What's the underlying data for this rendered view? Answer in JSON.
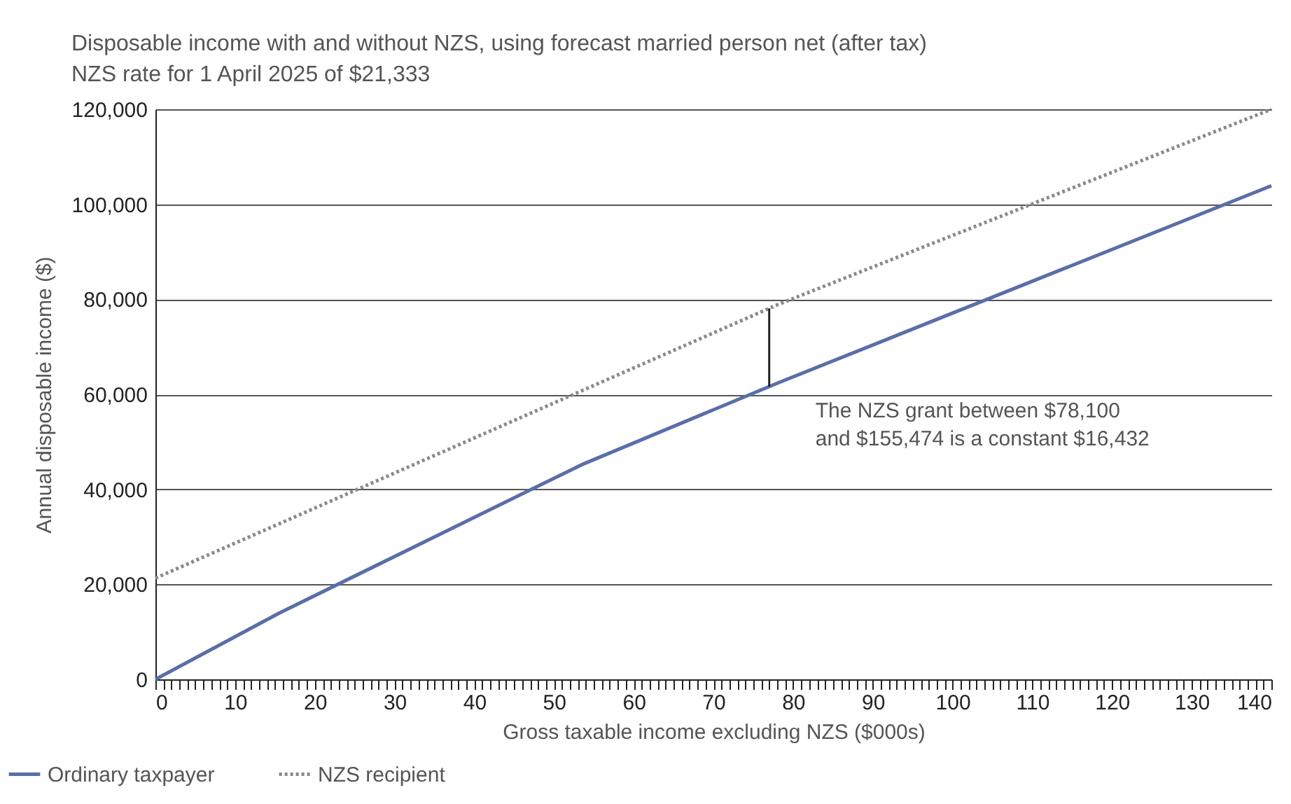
{
  "chart_data": {
    "type": "line",
    "title": "Disposable income with and without NZS, using forecast married person net (after tax)\nNZS rate for 1 April 2025 of $21,333",
    "xlabel": "Gross taxable income excluding NZS ($000s)",
    "ylabel": "Annual disposable income ($)",
    "series": [
      {
        "name": "Ordinary taxpayer",
        "color": "#5a6ea8",
        "line_style": "solid",
        "x": [
          0,
          15.6,
          53.5,
          78.1,
          140
        ],
        "values": [
          0,
          14000,
          45200,
          62400,
          103900
        ]
      },
      {
        "name": "NZS recipient",
        "color": "#8a8a8a",
        "line_style": "dotted",
        "x": [
          0,
          78.1,
          140
        ],
        "values": [
          21300,
          78900,
          120000
        ]
      }
    ],
    "annotations": [
      {
        "text": "The NZS grant between $78,100\nand $155,474 is a constant $16,432",
        "x": 77,
        "y": 61600
      }
    ],
    "xlim": [
      0,
      140
    ],
    "xticks": [
      0,
      {
        "value": 1,
        "label": null
      },
      {
        "value": 2,
        "label": null
      },
      {
        "value": 3,
        "label": null
      },
      {
        "value": 4,
        "label": null
      },
      {
        "value": 5,
        "label": null
      },
      {
        "value": 6,
        "label": null
      },
      {
        "value": 7,
        "label": null
      },
      {
        "value": 8,
        "label": null
      },
      {
        "value": 9,
        "label": null
      },
      10,
      {
        "value": 11,
        "label": null
      },
      {
        "value": 12,
        "label": null
      },
      {
        "value": 13,
        "label": null
      },
      {
        "value": 14,
        "label": null
      },
      {
        "value": 15,
        "label": null
      },
      {
        "value": 16,
        "label": null
      },
      {
        "value": 17,
        "label": null
      },
      {
        "value": 18,
        "label": null
      },
      {
        "value": 19,
        "label": null
      },
      20,
      {
        "value": 21,
        "label": null
      },
      {
        "value": 22,
        "label": null
      },
      {
        "value": 23,
        "label": null
      },
      {
        "value": 24,
        "label": null
      },
      {
        "value": 25,
        "label": null
      },
      {
        "value": 26,
        "label": null
      },
      {
        "value": 27,
        "label": null
      },
      {
        "value": 28,
        "label": null
      },
      {
        "value": 29,
        "label": null
      },
      30,
      {
        "value": 31,
        "label": null
      },
      {
        "value": 32,
        "label": null
      },
      {
        "value": 33,
        "label": null
      },
      {
        "value": 34,
        "label": null
      },
      {
        "value": 35,
        "label": null
      },
      {
        "value": 36,
        "label": null
      },
      {
        "value": 37,
        "label": null
      },
      {
        "value": 38,
        "label": null
      },
      {
        "value": 39,
        "label": null
      },
      40,
      {
        "value": 41,
        "label": null
      },
      {
        "value": 42,
        "label": null
      },
      {
        "value": 43,
        "label": null
      },
      {
        "value": 44,
        "label": null
      },
      {
        "value": 45,
        "label": null
      },
      {
        "value": 46,
        "label": null
      },
      {
        "value": 47,
        "label": null
      },
      {
        "value": 48,
        "label": null
      },
      {
        "value": 49,
        "label": null
      },
      50,
      {
        "value": 51,
        "label": null
      },
      {
        "value": 52,
        "label": null
      },
      {
        "value": 53,
        "label": null
      },
      {
        "value": 54,
        "label": null
      },
      {
        "value": 55,
        "label": null
      },
      {
        "value": 56,
        "label": null
      },
      {
        "value": 57,
        "label": null
      },
      {
        "value": 58,
        "label": null
      },
      {
        "value": 59,
        "label": null
      },
      60,
      {
        "value": 61,
        "label": null
      },
      {
        "value": 62,
        "label": null
      },
      {
        "value": 63,
        "label": null
      },
      {
        "value": 64,
        "label": null
      },
      {
        "value": 65,
        "label": null
      },
      {
        "value": 66,
        "label": null
      },
      {
        "value": 67,
        "label": null
      },
      {
        "value": 68,
        "label": null
      },
      {
        "value": 69,
        "label": null
      },
      70,
      {
        "value": 71,
        "label": null
      },
      {
        "value": 72,
        "label": null
      },
      {
        "value": 73,
        "label": null
      },
      {
        "value": 74,
        "label": null
      },
      {
        "value": 75,
        "label": null
      },
      {
        "value": 76,
        "label": null
      },
      {
        "value": 77,
        "label": null
      },
      {
        "value": 78,
        "label": null
      },
      {
        "value": 79,
        "label": null
      },
      80,
      {
        "value": 81,
        "label": null
      },
      {
        "value": 82,
        "label": null
      },
      {
        "value": 83,
        "label": null
      },
      {
        "value": 84,
        "label": null
      },
      {
        "value": 85,
        "label": null
      },
      {
        "value": 86,
        "label": null
      },
      {
        "value": 87,
        "label": null
      },
      {
        "value": 88,
        "label": null
      },
      {
        "value": 89,
        "label": null
      },
      90,
      {
        "value": 91,
        "label": null
      },
      {
        "value": 92,
        "label": null
      },
      {
        "value": 93,
        "label": null
      },
      {
        "value": 94,
        "label": null
      },
      {
        "value": 95,
        "label": null
      },
      {
        "value": 96,
        "label": null
      },
      {
        "value": 97,
        "label": null
      },
      {
        "value": 98,
        "label": null
      },
      {
        "value": 99,
        "label": null
      },
      100,
      {
        "value": 101,
        "label": null
      },
      {
        "value": 102,
        "label": null
      },
      {
        "value": 103,
        "label": null
      },
      {
        "value": 104,
        "label": null
      },
      {
        "value": 105,
        "label": null
      },
      {
        "value": 106,
        "label": null
      },
      {
        "value": 107,
        "label": null
      },
      {
        "value": 108,
        "label": null
      },
      {
        "value": 109,
        "label": null
      },
      110,
      {
        "value": 111,
        "label": null
      },
      {
        "value": 112,
        "label": null
      },
      {
        "value": 113,
        "label": null
      },
      {
        "value": 114,
        "label": null
      },
      {
        "value": 115,
        "label": null
      },
      {
        "value": 116,
        "label": null
      },
      {
        "value": 117,
        "label": null
      },
      {
        "value": 118,
        "label": null
      },
      {
        "value": 119,
        "label": null
      },
      120,
      {
        "value": 121,
        "label": null
      },
      {
        "value": 122,
        "label": null
      },
      {
        "value": 123,
        "label": null
      },
      {
        "value": 124,
        "label": null
      },
      {
        "value": 125,
        "label": null
      },
      {
        "value": 126,
        "label": null
      },
      {
        "value": 127,
        "label": null
      },
      {
        "value": 128,
        "label": null
      },
      {
        "value": 129,
        "label": null
      },
      130,
      {
        "value": 131,
        "label": null
      },
      {
        "value": 132,
        "label": null
      },
      {
        "value": 133,
        "label": null
      },
      {
        "value": 134,
        "label": null
      },
      {
        "value": 135,
        "label": null
      },
      {
        "value": 136,
        "label": null
      },
      {
        "value": 137,
        "label": null
      },
      {
        "value": 138,
        "label": null
      },
      {
        "value": 139,
        "label": null
      },
      140
    ],
    "ylim": [
      0,
      120000
    ],
    "yticks": [
      0,
      {
        "value": 20000,
        "label": "20,000"
      },
      {
        "value": 40000,
        "label": "40,000"
      },
      {
        "value": 60000,
        "label": "60,000"
      },
      {
        "value": 80000,
        "label": "80,000"
      },
      {
        "value": 100000,
        "label": "100,000"
      },
      {
        "value": 120000,
        "label": "120,000"
      }
    ],
    "grid": "y",
    "legend": "bottom left"
  }
}
